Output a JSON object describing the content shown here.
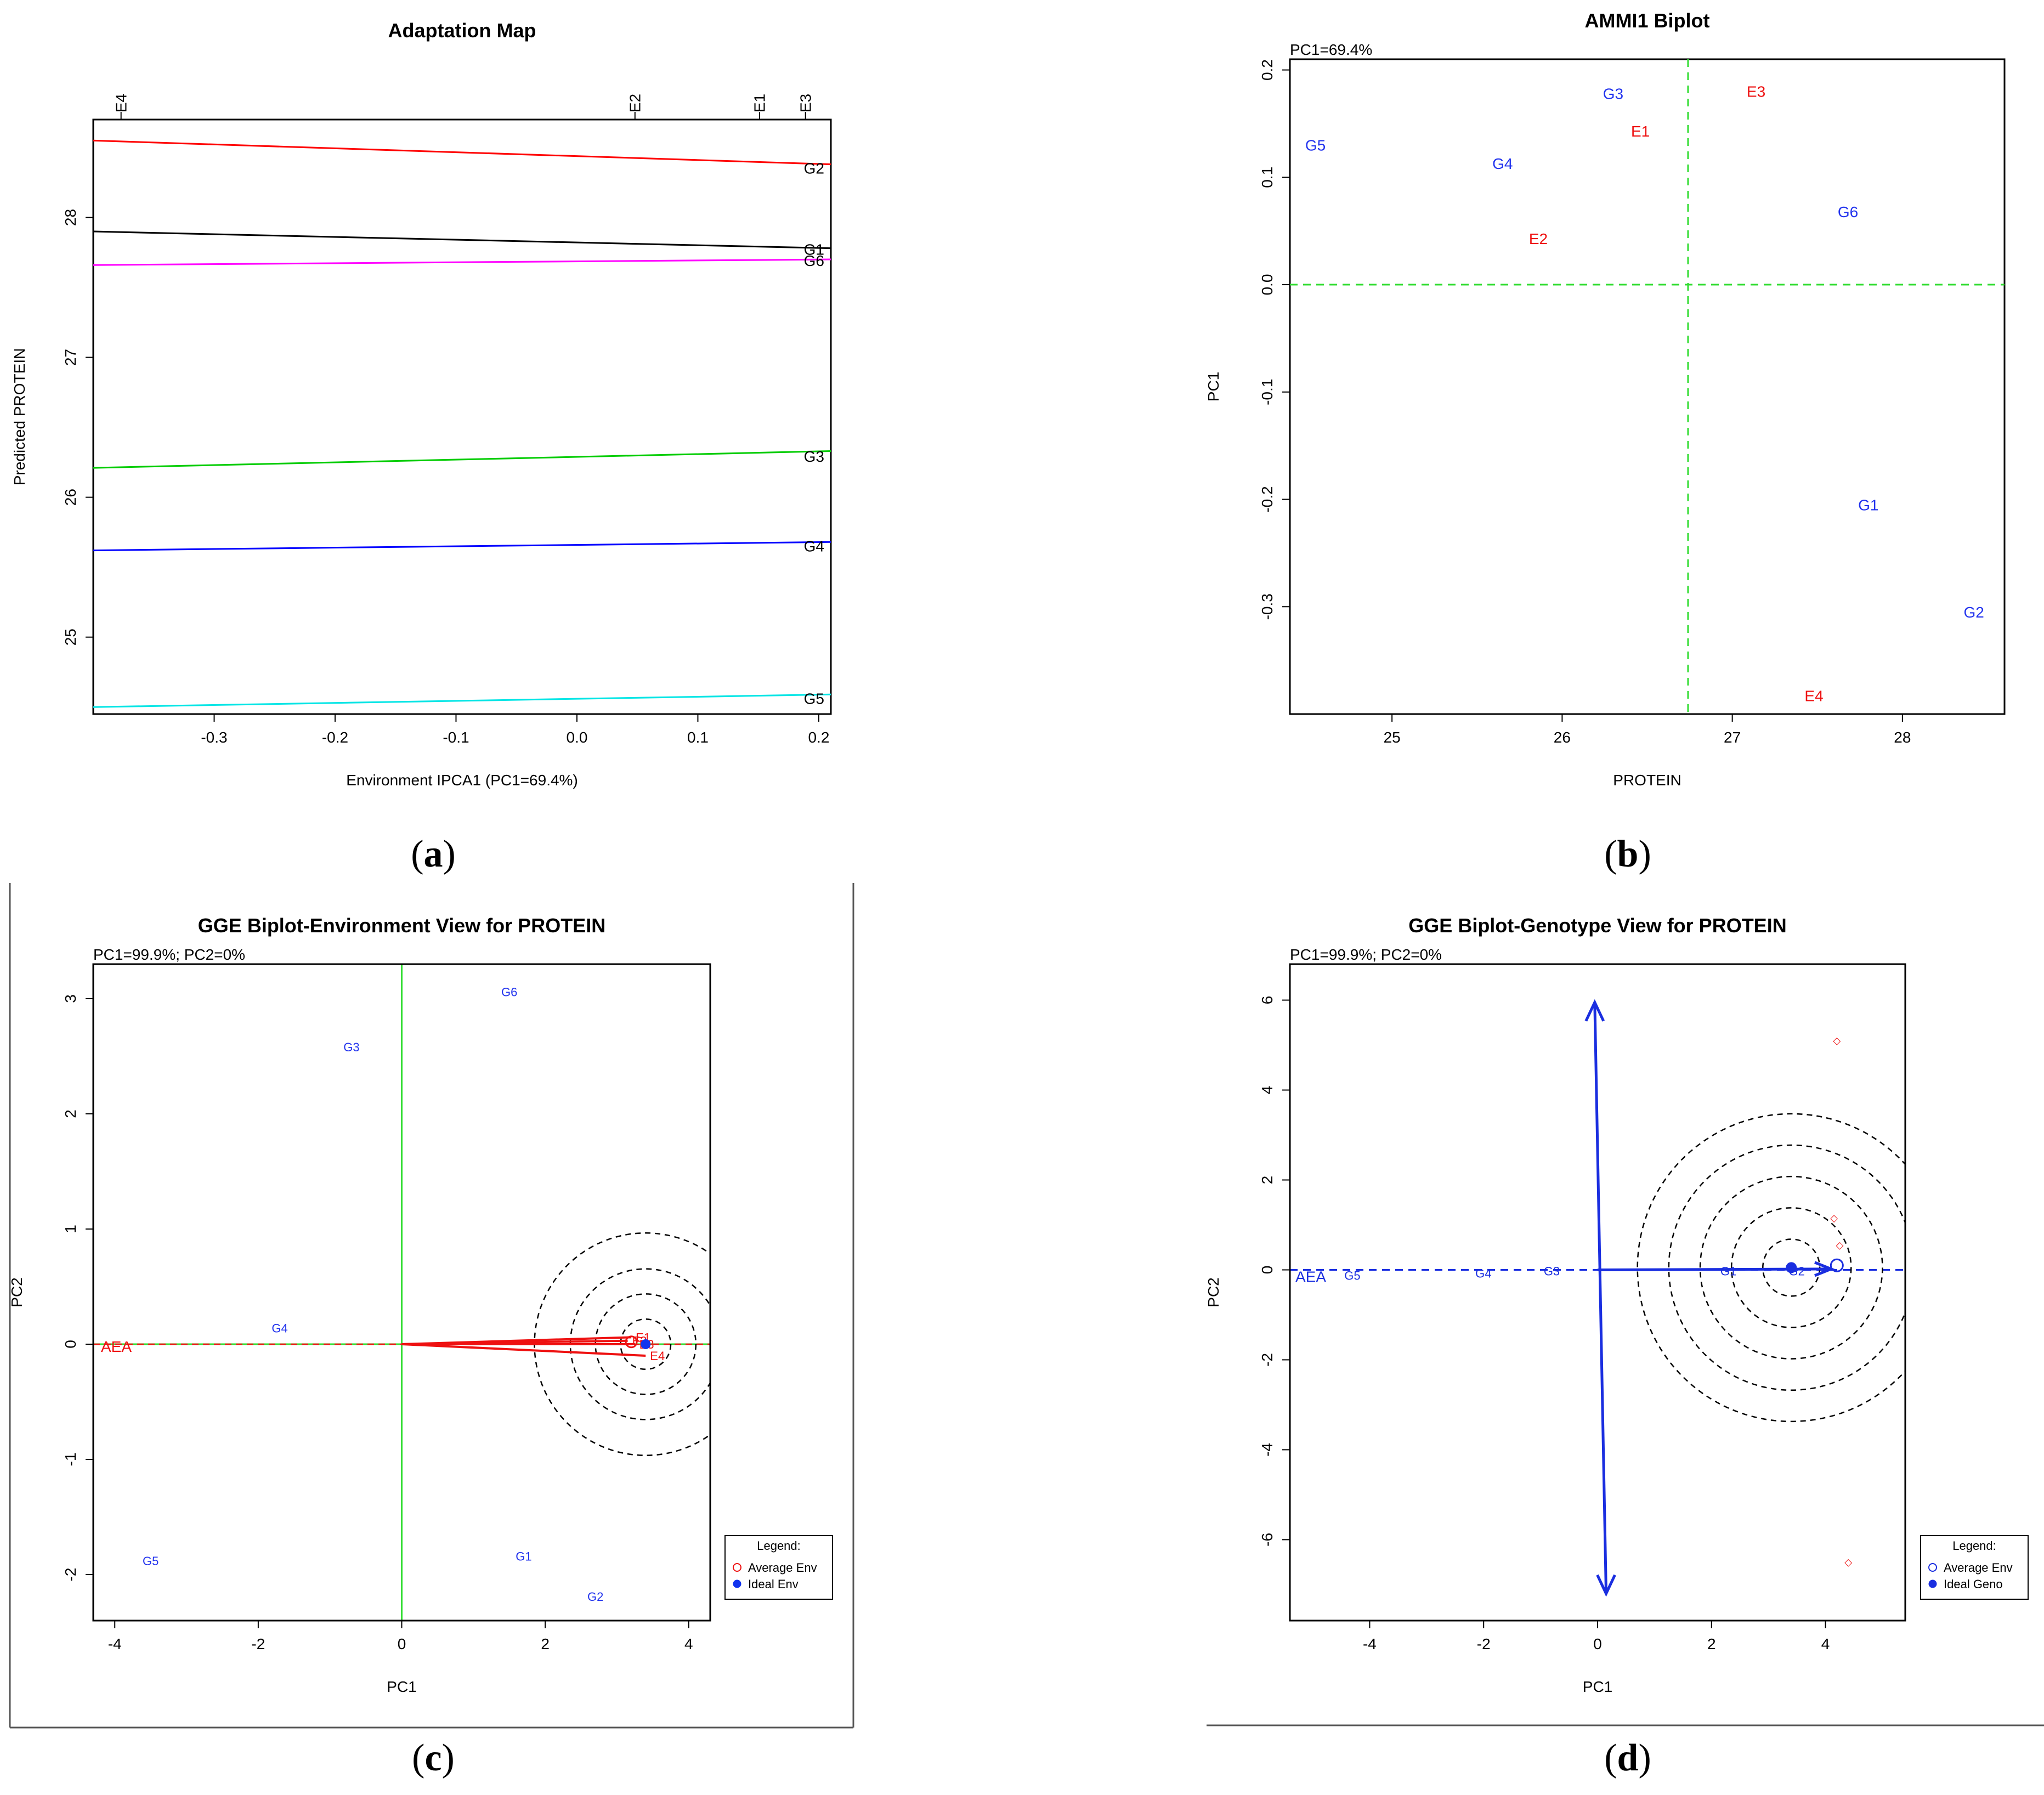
{
  "captions": [
    "a",
    "b",
    "c",
    "d"
  ],
  "chart_data": [
    {
      "type": "line",
      "title": "Adaptation Map",
      "xlabel": "Environment IPCA1 (PC1=69.4%)",
      "ylabel": "Predicted PROTEIN",
      "xlim": [
        -0.4,
        0.21
      ],
      "ylim": [
        24.45,
        28.7
      ],
      "xticks": [
        -0.3,
        -0.2,
        -0.1,
        0.0,
        0.1,
        0.2
      ],
      "xtick_labels": [
        "-0.3",
        "-0.2",
        "-0.1",
        "0.0",
        "0.1",
        "0.2"
      ],
      "yticks": [
        25,
        26,
        27,
        28
      ],
      "ytick_labels": [
        "25",
        "26",
        "27",
        "28"
      ],
      "top_axis": [
        {
          "label": "E4",
          "x": -0.377
        },
        {
          "label": "E2",
          "x": 0.048
        },
        {
          "label": "E1",
          "x": 0.151
        },
        {
          "label": "E3",
          "x": 0.189
        }
      ],
      "series": [
        {
          "name": "G2",
          "color": "#ff0000",
          "x": [
            -0.4,
            0.21
          ],
          "values": [
            28.55,
            28.38
          ]
        },
        {
          "name": "G1",
          "color": "#000000",
          "x": [
            -0.4,
            0.21
          ],
          "values": [
            27.9,
            27.78
          ]
        },
        {
          "name": "G6",
          "color": "#ff00ff",
          "x": [
            -0.4,
            0.21
          ],
          "values": [
            27.66,
            27.7
          ]
        },
        {
          "name": "G3",
          "color": "#00cc00",
          "x": [
            -0.4,
            0.21
          ],
          "values": [
            26.21,
            26.33
          ]
        },
        {
          "name": "G4",
          "color": "#0000ff",
          "x": [
            -0.4,
            0.21
          ],
          "values": [
            25.62,
            25.68
          ]
        },
        {
          "name": "G5",
          "color": "#00e5e5",
          "x": [
            -0.4,
            0.21
          ],
          "values": [
            24.5,
            24.59
          ]
        }
      ],
      "end_labels": [
        {
          "text": "G2",
          "y": 28.36
        },
        {
          "text": "G1",
          "y": 27.78
        },
        {
          "text": "G6",
          "y": 27.7
        },
        {
          "text": "G3",
          "y": 26.3
        },
        {
          "text": "G4",
          "y": 25.66
        },
        {
          "text": "G5",
          "y": 24.57
        }
      ]
    },
    {
      "type": "scatter",
      "title": "AMMI1 Biplot",
      "subtitle": "PC1=69.4%",
      "xlabel": "PROTEIN",
      "ylabel": "PC1",
      "xlim": [
        24.4,
        28.6
      ],
      "ylim": [
        -0.4,
        0.21
      ],
      "xticks": [
        25,
        26,
        27,
        28
      ],
      "xtick_labels": [
        "25",
        "26",
        "27",
        "28"
      ],
      "yticks": [
        -0.3,
        -0.2,
        -0.1,
        0.0,
        0.1,
        0.2
      ],
      "ytick_labels": [
        "-0.3",
        "-0.2",
        "-0.1",
        "0.0",
        "0.1",
        "0.2"
      ],
      "ref_lines": {
        "x": 26.74,
        "y": 0.0,
        "color": "#33dd33"
      },
      "points": [
        {
          "label": "G5",
          "group": "genotype",
          "x": 24.55,
          "y": 0.13
        },
        {
          "label": "G3",
          "group": "genotype",
          "x": 26.3,
          "y": 0.178
        },
        {
          "label": "G4",
          "group": "genotype",
          "x": 25.65,
          "y": 0.113
        },
        {
          "label": "G6",
          "group": "genotype",
          "x": 27.68,
          "y": 0.068
        },
        {
          "label": "G1",
          "group": "genotype",
          "x": 27.8,
          "y": -0.205
        },
        {
          "label": "G2",
          "group": "genotype",
          "x": 28.42,
          "y": -0.305
        },
        {
          "label": "E3",
          "group": "environment",
          "x": 27.14,
          "y": 0.18
        },
        {
          "label": "E1",
          "group": "environment",
          "x": 26.46,
          "y": 0.143
        },
        {
          "label": "E2",
          "group": "environment",
          "x": 25.86,
          "y": 0.043
        },
        {
          "label": "E4",
          "group": "environment",
          "x": 27.48,
          "y": -0.383
        }
      ],
      "colors": {
        "genotype": "#2233ee",
        "environment": "#ee1111"
      }
    },
    {
      "type": "scatter",
      "title": "GGE Biplot-Environment View for PROTEIN",
      "subtitle": "PC1=99.9%; PC2=0%",
      "xlabel": "PC1",
      "ylabel": "PC2",
      "xlim": [
        -4.3,
        4.3
      ],
      "ylim": [
        -2.4,
        3.3
      ],
      "xticks": [
        -4,
        -2,
        0,
        2,
        4
      ],
      "xtick_labels": [
        "-4",
        "-2",
        "0",
        "2",
        "4"
      ],
      "yticks": [
        -2,
        -1,
        0,
        1,
        2,
        3
      ],
      "ytick_labels": [
        "-2",
        "-1",
        "0",
        "1",
        "2",
        "3"
      ],
      "genotypes": [
        {
          "label": "G6",
          "x": 1.5,
          "y": 3.06
        },
        {
          "label": "G3",
          "x": -0.7,
          "y": 2.58
        },
        {
          "label": "G4",
          "x": -1.7,
          "y": 0.14
        },
        {
          "label": "G5",
          "x": -3.5,
          "y": -1.88
        },
        {
          "label": "G1",
          "x": 1.7,
          "y": -1.84
        },
        {
          "label": "G2",
          "x": 2.7,
          "y": -2.19
        }
      ],
      "environments": [
        {
          "label": "E1",
          "x": 3.2,
          "y": 0.06
        },
        {
          "label": "E2",
          "x": 3.15,
          "y": 0.03
        },
        {
          "label": "E3",
          "x": 3.25,
          "y": 0.0
        },
        {
          "label": "E4",
          "x": 3.4,
          "y": -0.1
        }
      ],
      "aea_label": "AEA",
      "ideal_point": {
        "x": 3.4,
        "y": 0.0
      },
      "circle_radii": [
        0.35,
        0.7,
        1.05,
        1.55
      ],
      "legend": {
        "title": "Legend:",
        "items": [
          "Average Env",
          "Ideal Env"
        ]
      },
      "colors": {
        "genotype": "#2233ee",
        "environment": "#ee1111",
        "axis_line": "#33dd33"
      }
    },
    {
      "type": "scatter",
      "title": "GGE Biplot-Genotype View for PROTEIN",
      "subtitle": "PC1=99.9%; PC2=0%",
      "xlabel": "PC1",
      "ylabel": "PC2",
      "xlim": [
        -5.4,
        5.4
      ],
      "ylim": [
        -7.8,
        6.8
      ],
      "xticks": [
        -4,
        -2,
        0,
        2,
        4
      ],
      "xtick_labels": [
        "-4",
        "-2",
        "0",
        "2",
        "4"
      ],
      "yticks": [
        -6,
        -4,
        -2,
        0,
        2,
        4,
        6
      ],
      "ytick_labels": [
        "-6",
        "-4",
        "-2",
        "0",
        "2",
        "4",
        "6"
      ],
      "genotypes": [
        {
          "label": "G5",
          "x": -4.4,
          "y": -0.1
        },
        {
          "label": "G4",
          "x": -2.1,
          "y": -0.05
        },
        {
          "label": "G3",
          "x": -0.9,
          "y": 0.0
        },
        {
          "label": "G1",
          "x": 2.2,
          "y": 0.0
        },
        {
          "label": "G2",
          "x": 3.4,
          "y": 0.0
        }
      ],
      "environments": [
        {
          "x": 4.2,
          "y": 5.1
        },
        {
          "x": 4.15,
          "y": 1.15
        },
        {
          "x": 4.25,
          "y": 0.55
        },
        {
          "x": 4.4,
          "y": -6.5
        }
      ],
      "aea_label": "AEA",
      "average_env": {
        "x": 4.2,
        "y": 0.1
      },
      "ideal_point": {
        "x": 3.4,
        "y": 0.05
      },
      "circle_radii": [
        0.5,
        1.05,
        1.6,
        2.15,
        2.7
      ],
      "legend": {
        "title": "Legend:",
        "items": [
          "Average Env",
          "Ideal Geno"
        ]
      },
      "colors": {
        "genotype": "#2233ee",
        "environment": "#ee1111",
        "arrow": "#1a2ee0"
      }
    }
  ]
}
